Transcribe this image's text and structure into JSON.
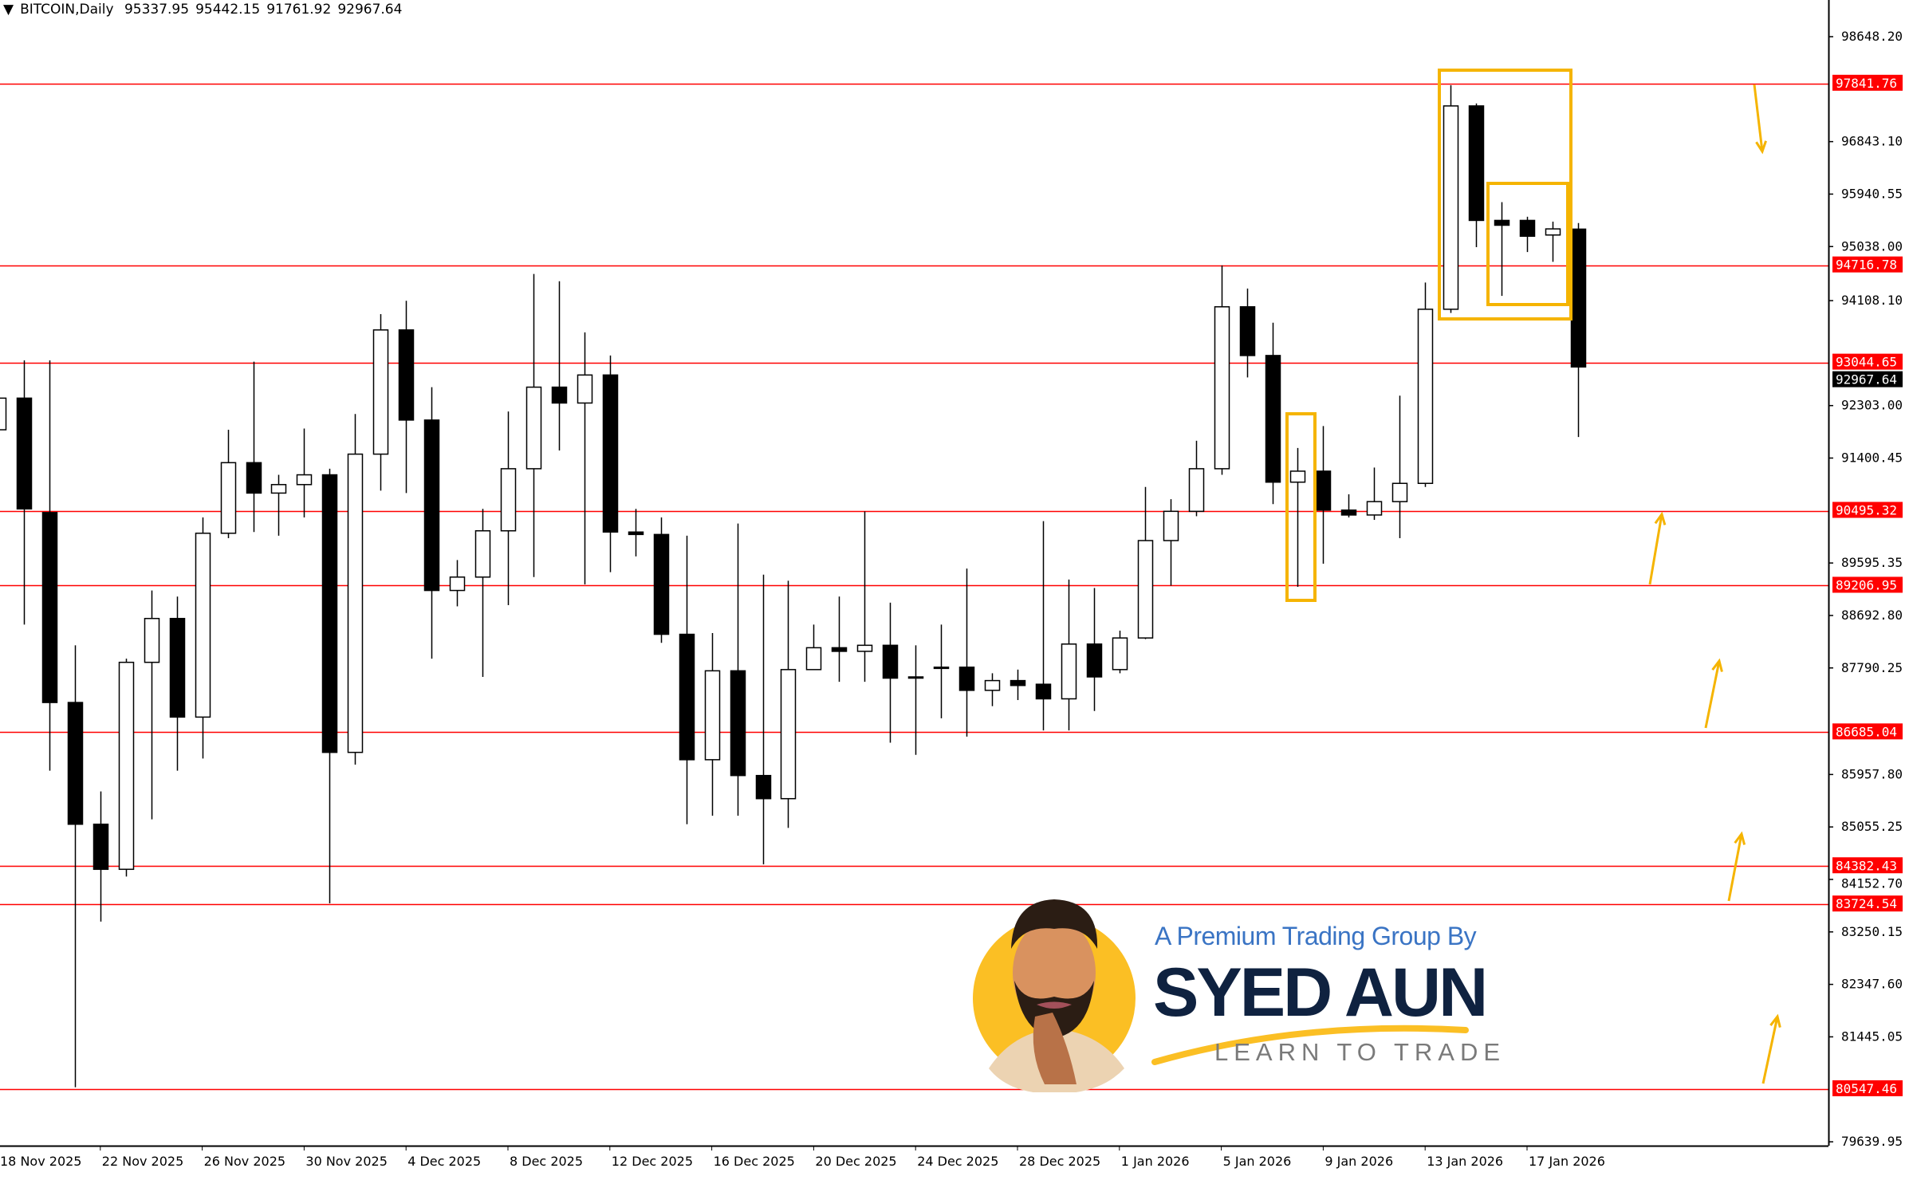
{
  "header": {
    "symbol": "BITCOIN,Daily",
    "open": "95337.95",
    "high": "95442.15",
    "low": "91761.92",
    "close": "92967.64",
    "menu_icon": "triangle-down-icon"
  },
  "colors": {
    "level_line": "#ff0000",
    "annotation": "#f5b400",
    "bull_body": "#ffffff",
    "bear_body": "#000000",
    "logo_yellow": "#fbbf24",
    "logo_navy": "#0f2240",
    "logo_blue": "#3a74c4"
  },
  "chart_data": {
    "type": "candlestick",
    "title": "BITCOIN,Daily",
    "ylim": [
      79639.95,
      98648.2
    ],
    "grid": false,
    "y_ticks": [
      "98648.20",
      "96843.10",
      "95940.55",
      "95038.00",
      "94108.10",
      "92303.00",
      "91400.45",
      "89595.35",
      "88692.80",
      "87790.25",
      "85957.80",
      "85055.25",
      "84152.70",
      "83250.15",
      "82347.60",
      "81445.05",
      "79639.95"
    ],
    "x_tick_labels": [
      "18 Nov 2025",
      "22 Nov 2025",
      "26 Nov 2025",
      "30 Nov 2025",
      "4 Dec 2025",
      "8 Dec 2025",
      "12 Dec 2025",
      "16 Dec 2025",
      "20 Dec 2025",
      "24 Dec 2025",
      "28 Dec 2025",
      "1 Jan 2026",
      "5 Jan 2026",
      "9 Jan 2026",
      "13 Jan 2026",
      "17 Jan 2026"
    ],
    "first_date": "18 Nov 2025",
    "candles": [
      [
        91887,
        92578,
        91740,
        92431
      ],
      [
        92431,
        93080,
        88536,
        90526
      ],
      [
        90463,
        93080,
        86023,
        87196
      ],
      [
        87196,
        88180,
        80579,
        85102
      ],
      [
        85102,
        85667,
        83427,
        84327
      ],
      [
        84327,
        87950,
        84202,
        87887
      ],
      [
        87887,
        89123,
        85186,
        88641
      ],
      [
        88641,
        89018,
        86023,
        86945
      ],
      [
        86945,
        90379,
        86233,
        90107
      ],
      [
        90107,
        91887,
        90023,
        91321
      ],
      [
        91321,
        93059,
        90128,
        90798
      ],
      [
        90798,
        91112,
        90065,
        90944
      ],
      [
        90944,
        91908,
        90379,
        91112
      ],
      [
        91112,
        91217,
        83741,
        86338
      ],
      [
        86338,
        92159,
        86128,
        91468
      ],
      [
        91468,
        93876,
        90840,
        93604
      ],
      [
        93604,
        94106,
        90798,
        92054
      ],
      [
        92054,
        92620,
        87950,
        89123
      ],
      [
        89123,
        89646,
        88850,
        89353
      ],
      [
        89353,
        90526,
        87636,
        90149
      ],
      [
        90149,
        92201,
        88871,
        91217
      ],
      [
        91217,
        94567,
        89353,
        92620
      ],
      [
        92620,
        94441,
        91531,
        92347
      ],
      [
        92347,
        93562,
        89227,
        92829
      ],
      [
        92829,
        93164,
        89437,
        90128
      ],
      [
        90128,
        90526,
        89709,
        90086
      ],
      [
        90086,
        90379,
        88222,
        88369
      ],
      [
        88369,
        90065,
        85102,
        86212
      ],
      [
        86212,
        88390,
        85249,
        87741
      ],
      [
        87741,
        90274,
        85249,
        85940
      ],
      [
        85940,
        89395,
        84411,
        85542
      ],
      [
        85542,
        89290,
        85039,
        87762
      ],
      [
        87762,
        88536,
        87762,
        88138
      ],
      [
        88138,
        89018,
        87552,
        88076
      ],
      [
        88076,
        90484,
        87552,
        88180
      ],
      [
        88180,
        88913,
        86505,
        87615
      ],
      [
        87636,
        88180,
        86296,
        87615
      ],
      [
        87782,
        88536,
        86924,
        87803
      ],
      [
        87803,
        89500,
        86610,
        87405
      ],
      [
        87405,
        87699,
        87133,
        87573
      ],
      [
        87573,
        87762,
        87238,
        87489
      ],
      [
        87510,
        90316,
        86715,
        87259
      ],
      [
        87259,
        89311,
        86715,
        88201
      ],
      [
        88201,
        89165,
        87050,
        87636
      ],
      [
        87762,
        88432,
        87699,
        88306
      ],
      [
        88306,
        90903,
        88285,
        89981
      ],
      [
        89981,
        90693,
        89206,
        90484
      ],
      [
        90484,
        91698,
        90400,
        91217
      ],
      [
        91217,
        94714,
        91112,
        94002
      ],
      [
        94002,
        94316,
        92787,
        93164
      ],
      [
        93164,
        93729,
        90609,
        90986
      ],
      [
        90986,
        91573,
        89185,
        91175
      ],
      [
        91175,
        91950,
        89583,
        90505
      ],
      [
        90505,
        90777,
        90379,
        90421
      ],
      [
        90421,
        91237,
        90337,
        90651
      ],
      [
        90651,
        92473,
        90023,
        90965
      ],
      [
        90965,
        94420,
        90903,
        93960
      ],
      [
        93960,
        97813,
        93897,
        97457
      ],
      [
        97457,
        97499,
        95028,
        95488
      ],
      [
        95488,
        95802,
        94190,
        95405
      ],
      [
        95488,
        95551,
        94944,
        95216
      ],
      [
        95237,
        95467,
        94776,
        95342
      ],
      [
        95337.95,
        95442.15,
        91761.92,
        92967.64
      ]
    ],
    "candle_format": [
      "open",
      "high",
      "low",
      "close"
    ],
    "levels": [
      "97841.76",
      "94716.78",
      "93044.65",
      "90495.32",
      "89206.95",
      "86685.04",
      "84382.43",
      "83724.54",
      "80547.46"
    ],
    "current_price": "92967.64"
  },
  "logo": {
    "tagline": "A Premium Trading Group By",
    "name": "SYED AUN",
    "slogan": "LEARN TO TRADE"
  }
}
